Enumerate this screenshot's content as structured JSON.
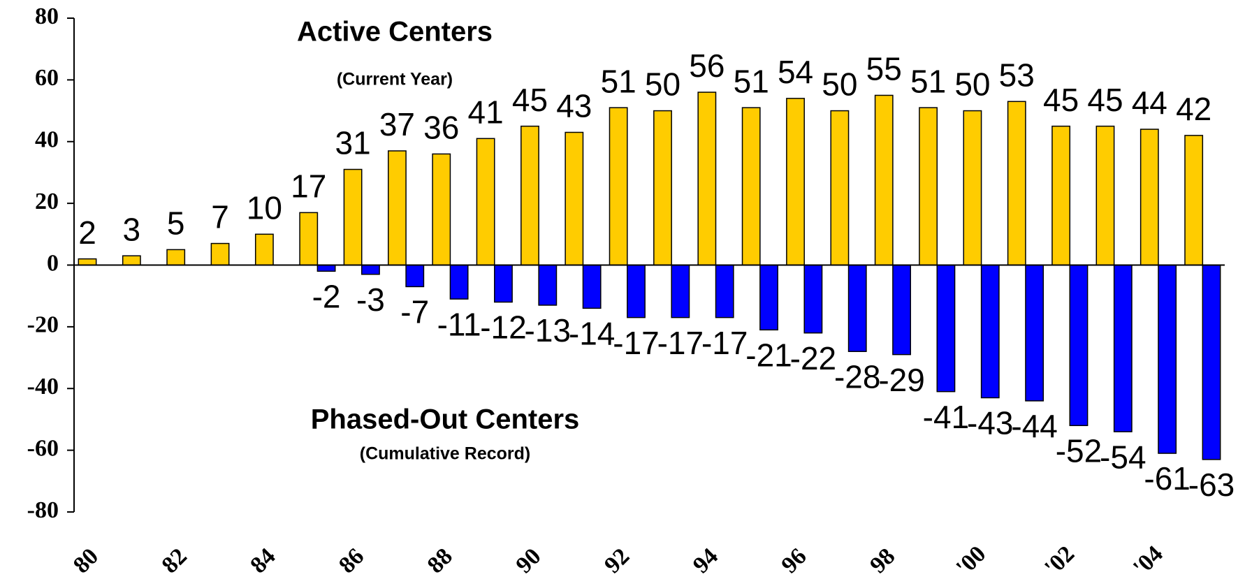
{
  "chart_data": {
    "type": "bar",
    "categories": [
      "80",
      null,
      "82",
      null,
      "84",
      null,
      "86",
      null,
      "88",
      null,
      "90",
      null,
      "92",
      null,
      "94",
      null,
      "96",
      null,
      "98",
      null,
      "'00",
      null,
      "'02",
      null,
      "'04",
      null
    ],
    "series": [
      {
        "color": "#ffcc00",
        "values": [
          2,
          3,
          5,
          7,
          10,
          17,
          31,
          37,
          36,
          41,
          45,
          43,
          51,
          50,
          56,
          51,
          54,
          50,
          55,
          51,
          50,
          53,
          45,
          45,
          44,
          42
        ]
      },
      {
        "color": "#0000ff",
        "values": [
          null,
          null,
          null,
          null,
          null,
          -2,
          -3,
          -7,
          -11,
          -12,
          -13,
          -14,
          -17,
          -17,
          -17,
          -21,
          -22,
          -28,
          -29,
          -41,
          -43,
          -44,
          -52,
          -54,
          -61,
          -63
        ]
      }
    ],
    "annotations": [
      "Active Centers",
      "(Current Year)",
      "Phased-Out Centers",
      "(Cumulative Record)"
    ],
    "ylim": [
      -80,
      80
    ],
    "yticks": [
      -80,
      -60,
      -40,
      -20,
      0,
      20,
      40,
      60,
      80
    ],
    "grid": false
  }
}
